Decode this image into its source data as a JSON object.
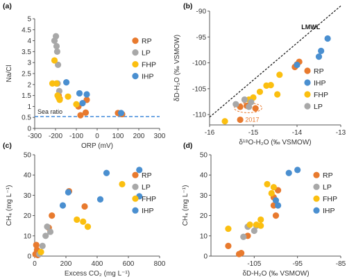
{
  "colors": {
    "RP": "#e87a2e",
    "LP": "#a8a8a8",
    "FHP": "#fbbf10",
    "IHP": "#4a8fd0"
  },
  "chart_data": [
    {
      "id": "a",
      "panel_label": "(a)",
      "type": "scatter",
      "xlabel": "ORP (mV)",
      "ylabel": "Na/Cl",
      "xlim": [
        -300,
        300
      ],
      "ylim": [
        0,
        5
      ],
      "xticks": [
        "-300",
        "-200",
        "-100",
        "0",
        "100",
        "200",
        "300"
      ],
      "yticks": [
        "0",
        "0.5",
        "1",
        "1.5",
        "2",
        "2.5",
        "3",
        "3.5",
        "4",
        "4.5",
        "5"
      ],
      "legend_position": "right",
      "reference_line": {
        "label": "Sea ratio",
        "y": 0.54
      },
      "series": [
        {
          "name": "RP",
          "points": [
            [
              -185,
              1.5
            ],
            [
              -180,
              1.35
            ],
            [
              -90,
              1.0
            ],
            [
              -80,
              0.6
            ],
            [
              -55,
              0.72
            ],
            [
              -50,
              1.3
            ],
            [
              100,
              0.7
            ],
            [
              120,
              0.65
            ]
          ]
        },
        {
          "name": "LP",
          "points": [
            [
              -205,
              4.0
            ],
            [
              -198,
              4.2
            ],
            [
              -195,
              3.75
            ],
            [
              -192,
              3.5
            ],
            [
              -188,
              2.9
            ],
            [
              -190,
              2.05
            ],
            [
              -182,
              1.7
            ]
          ]
        },
        {
          "name": "FHP",
          "points": [
            [
              -215,
              2.05
            ],
            [
              -205,
              3.1
            ],
            [
              -195,
              2.05
            ],
            [
              -190,
              1.5
            ],
            [
              -185,
              1.4
            ],
            [
              -180,
              1.3
            ],
            [
              -140,
              1.45
            ],
            [
              -100,
              1.1
            ]
          ]
        },
        {
          "name": "IHP",
          "points": [
            [
              -148,
              2.1
            ],
            [
              -85,
              1.6
            ],
            [
              -70,
              1.15
            ],
            [
              -50,
              1.55
            ],
            [
              115,
              0.7
            ]
          ]
        }
      ]
    },
    {
      "id": "b",
      "panel_label": "(b)",
      "type": "scatter",
      "xlabel": "δ¹⁸O-H₂O (‰ VSMOW)",
      "ylabel": "δD-H₂O (‰ VSMOW)",
      "xlim": [
        -16,
        -13
      ],
      "ylim": [
        -112,
        -90
      ],
      "xticks": [
        "-16",
        "-15",
        "-14",
        "-13"
      ],
      "yticks": [
        "-110",
        "-105",
        "-100",
        "-95",
        "-90"
      ],
      "legend_position": "bottom-right",
      "line": {
        "label": "LMWL",
        "points": [
          [
            -16,
            -110.5
          ],
          [
            -13,
            -89
          ]
        ]
      },
      "annotation": "2017",
      "series": [
        {
          "name": "RP",
          "points": [
            [
              -15.3,
              -108.5
            ],
            [
              -15.15,
              -108.3
            ],
            [
              -14.95,
              -108.8
            ],
            [
              -15.3,
              -111
            ],
            [
              -14.05,
              -100.8
            ],
            [
              -14,
              -100.3
            ],
            [
              -13.95,
              -99.8
            ]
          ]
        },
        {
          "name": "IHP",
          "points": [
            [
              -14,
              -100.4
            ],
            [
              -13.5,
              -98.8
            ],
            [
              -13.45,
              -97.7
            ],
            [
              -13.3,
              -95.3
            ]
          ]
        },
        {
          "name": "FHP",
          "points": [
            [
              -15.65,
              -111.3
            ],
            [
              -15.1,
              -107.1
            ],
            [
              -14.85,
              -105.6
            ],
            [
              -14.7,
              -104.4
            ],
            [
              -14.6,
              -104.3
            ],
            [
              -14.45,
              -106.1
            ],
            [
              -14.4,
              -102.3
            ],
            [
              -15,
              -106.7
            ]
          ]
        },
        {
          "name": "LP",
          "points": [
            [
              -15.4,
              -108
            ],
            [
              -15.2,
              -107.1
            ],
            [
              -15.05,
              -107.6
            ],
            [
              -15.1,
              -108.5
            ]
          ]
        }
      ]
    },
    {
      "id": "c",
      "panel_label": "(c)",
      "type": "scatter",
      "xlabel": "Excess CO₂ (mg L⁻¹)",
      "ylabel": "CH₄ (mg L⁻¹)",
      "xlim": [
        0,
        800
      ],
      "ylim": [
        0,
        50
      ],
      "xticks": [
        "0",
        "200",
        "400",
        "600",
        "800"
      ],
      "yticks": [
        "0",
        "10",
        "20",
        "30",
        "40",
        "50"
      ],
      "legend_position": "right",
      "series": [
        {
          "name": "RP",
          "points": [
            [
              5,
              1
            ],
            [
              10,
              5.5
            ],
            [
              15,
              3
            ],
            [
              20,
              0.5
            ],
            [
              90,
              14
            ],
            [
              110,
              20
            ],
            [
              220,
              32
            ],
            [
              320,
              24.5
            ]
          ]
        },
        {
          "name": "LP",
          "points": [
            [
              30,
              1
            ],
            [
              50,
              5
            ],
            [
              70,
              10
            ],
            [
              80,
              14.5
            ],
            [
              100,
              12
            ]
          ]
        },
        {
          "name": "FHP",
          "points": [
            [
              40,
              2
            ],
            [
              270,
              18
            ],
            [
              310,
              17
            ],
            [
              340,
              14.5
            ],
            [
              560,
              35.5
            ]
          ]
        },
        {
          "name": "IHP",
          "points": [
            [
              180,
              25
            ],
            [
              215,
              31.5
            ],
            [
              420,
              28
            ],
            [
              460,
              41
            ],
            [
              670,
              42.5
            ],
            [
              670,
              29.5
            ]
          ]
        }
      ]
    },
    {
      "id": "d",
      "panel_label": "(d)",
      "type": "scatter",
      "xlabel": "δD-H₂O (‰ VSMOW)",
      "ylabel": "CH₄ (mg L⁻¹)",
      "xlim": [
        -115,
        -85
      ],
      "ylim": [
        0,
        50
      ],
      "xticks": [
        "-105",
        "-95",
        "-85"
      ],
      "yticks": [
        "0",
        "10",
        "20",
        "30",
        "40",
        "50"
      ],
      "legend_position": "right",
      "series": [
        {
          "name": "RP",
          "points": [
            [
              -111,
              5
            ],
            [
              -108.5,
              1
            ],
            [
              -108,
              1.5
            ],
            [
              -106.5,
              10
            ],
            [
              -100.5,
              25
            ],
            [
              -100,
              20
            ],
            [
              -100.5,
              29
            ],
            [
              -99.5,
              32.5
            ]
          ]
        },
        {
          "name": "LP",
          "points": [
            [
              -107.5,
              9.5
            ],
            [
              -106.5,
              14.5
            ],
            [
              -105,
              12.5
            ],
            [
              -104.5,
              15
            ]
          ]
        },
        {
          "name": "FHP",
          "points": [
            [
              -111,
              13.5
            ],
            [
              -106,
              15.5
            ],
            [
              -104.5,
              15.5
            ],
            [
              -103.5,
              18
            ],
            [
              -103.5,
              15
            ],
            [
              -102,
              35.5
            ],
            [
              -101,
              31
            ],
            [
              -100.5,
              34
            ]
          ]
        },
        {
          "name": "IHP",
          "points": [
            [
              -100,
              27.5
            ],
            [
              -99.5,
              25
            ],
            [
              -97,
              41
            ],
            [
              -95,
              42.5
            ]
          ]
        }
      ]
    }
  ]
}
